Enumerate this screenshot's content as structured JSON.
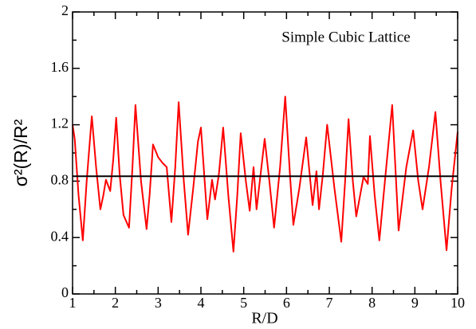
{
  "chart_data": {
    "type": "line",
    "annotation": "Simple Cubic Lattice",
    "xlabel": "R/D",
    "ylabel": "σ²(R)/R²",
    "xlim": [
      1,
      10
    ],
    "ylim": [
      0,
      2
    ],
    "xticks": [
      1,
      2,
      3,
      4,
      5,
      6,
      7,
      8,
      9,
      10
    ],
    "yticks": [
      0,
      0.4,
      0.8,
      1.2,
      1.6,
      2
    ],
    "xticks_minor": [
      1.5,
      2.5,
      3.5,
      4.5,
      5.5,
      6.5,
      7.5,
      8.5,
      9.5
    ],
    "yticks_minor": [
      0.2,
      0.6,
      1.0,
      1.4,
      1.8
    ],
    "series": [
      {
        "color": "#ff0000",
        "x": [
          1,
          1.05,
          1.14,
          1.24,
          1.33,
          1.45,
          1.55,
          1.65,
          1.72,
          1.78,
          1.88,
          1.95,
          2.02,
          2.1,
          2.19,
          2.32,
          2.4,
          2.47,
          2.6,
          2.73,
          2.8,
          2.88,
          3.0,
          3.1,
          3.2,
          3.31,
          3.4,
          3.48,
          3.6,
          3.7,
          3.82,
          3.93,
          4.0,
          4.15,
          4.26,
          4.33,
          4.42,
          4.52,
          4.64,
          4.76,
          4.85,
          4.93,
          5.05,
          5.14,
          5.23,
          5.3,
          5.49,
          5.6,
          5.71,
          5.85,
          5.97,
          6.08,
          6.16,
          6.3,
          6.46,
          6.61,
          6.7,
          6.76,
          6.85,
          6.95,
          7.12,
          7.28,
          7.37,
          7.45,
          7.55,
          7.63,
          7.8,
          7.9,
          7.95,
          8.06,
          8.17,
          8.3,
          8.47,
          8.62,
          8.8,
          8.96,
          9.08,
          9.18,
          9.33,
          9.48,
          9.6,
          9.74,
          9.86,
          10
        ],
        "values": [
          1.2,
          1.1,
          0.7,
          0.38,
          0.8,
          1.26,
          0.9,
          0.6,
          0.7,
          0.81,
          0.73,
          0.95,
          1.25,
          0.85,
          0.56,
          0.47,
          0.9,
          1.34,
          0.8,
          0.46,
          0.7,
          1.06,
          0.97,
          0.93,
          0.9,
          0.51,
          0.9,
          1.36,
          0.8,
          0.42,
          0.75,
          1.08,
          1.18,
          0.53,
          0.81,
          0.67,
          0.85,
          1.18,
          0.7,
          0.3,
          0.7,
          1.14,
          0.8,
          0.59,
          0.9,
          0.6,
          1.1,
          0.8,
          0.47,
          0.9,
          1.4,
          0.85,
          0.49,
          0.75,
          1.11,
          0.63,
          0.87,
          0.6,
          0.85,
          1.2,
          0.75,
          0.37,
          0.8,
          1.24,
          0.8,
          0.55,
          0.83,
          0.78,
          1.12,
          0.7,
          0.38,
          0.8,
          1.34,
          0.45,
          0.9,
          1.16,
          0.8,
          0.6,
          0.9,
          1.29,
          0.8,
          0.31,
          0.75,
          1.15
        ]
      },
      {
        "color": "#000000",
        "x": [
          1,
          10
        ],
        "values": [
          0.835,
          0.835
        ]
      }
    ]
  }
}
